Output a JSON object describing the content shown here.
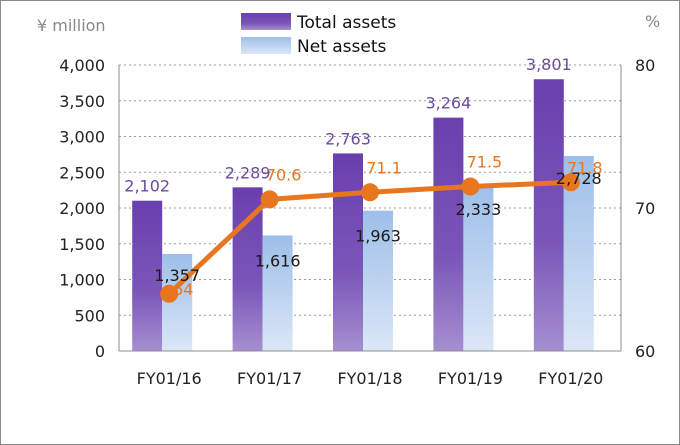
{
  "chart_data": {
    "type": "bar",
    "left_unit": "¥ million",
    "right_unit": "%",
    "categories": [
      "FY01/16",
      "FY01/17",
      "FY01/18",
      "FY01/19",
      "FY01/20"
    ],
    "series": [
      {
        "name": "Total assets",
        "kind": "bar",
        "axis": "left",
        "values": [
          2102,
          2289,
          2763,
          3264,
          3801
        ],
        "labels": [
          "2,102",
          "2,289",
          "2,763",
          "3,264",
          "3,801"
        ],
        "color": "#6f45b0"
      },
      {
        "name": "Net assets",
        "kind": "bar",
        "axis": "left",
        "values": [
          1357,
          1616,
          1963,
          2333,
          2728
        ],
        "labels": [
          "1,357",
          "1,616",
          "1,963",
          "2,333",
          "2,728"
        ],
        "color": "#a9c7ea"
      },
      {
        "name": "",
        "kind": "line",
        "axis": "right",
        "values": [
          64,
          70.6,
          71.1,
          71.5,
          71.8
        ],
        "labels": [
          "64",
          "70.6",
          "71.1",
          "71.5",
          "71.8"
        ],
        "color": "#e8761e"
      }
    ],
    "ylim_left": [
      0,
      4000
    ],
    "ylim_right": [
      60,
      80
    ],
    "yticks_left": [
      "0",
      "500",
      "1,000",
      "1,500",
      "2,000",
      "2,500",
      "3,000",
      "3,500",
      "4,000"
    ],
    "yticks_right": [
      "60",
      "70",
      "80"
    ],
    "grid": true,
    "legend": "top-center"
  }
}
